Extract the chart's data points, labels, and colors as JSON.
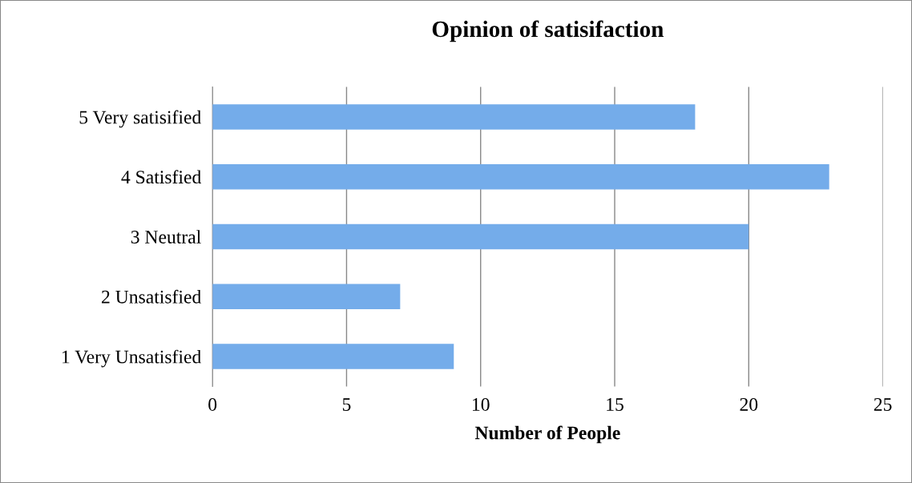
{
  "chart_data": {
    "type": "bar",
    "orientation": "horizontal",
    "title": "Opinion of satisifaction",
    "xlabel": "Number of People",
    "categories": [
      "5 Very satisified",
      "4 Satisfied",
      "3 Neutral",
      "2 Unsatisfied",
      "1 Very Unsatisfied"
    ],
    "values": [
      18,
      23,
      20,
      7,
      9
    ],
    "color": "#74acea",
    "xlim": [
      0,
      25
    ],
    "xticks": [
      0,
      5,
      10,
      15,
      20,
      25
    ],
    "grid": "x",
    "legend": false
  }
}
